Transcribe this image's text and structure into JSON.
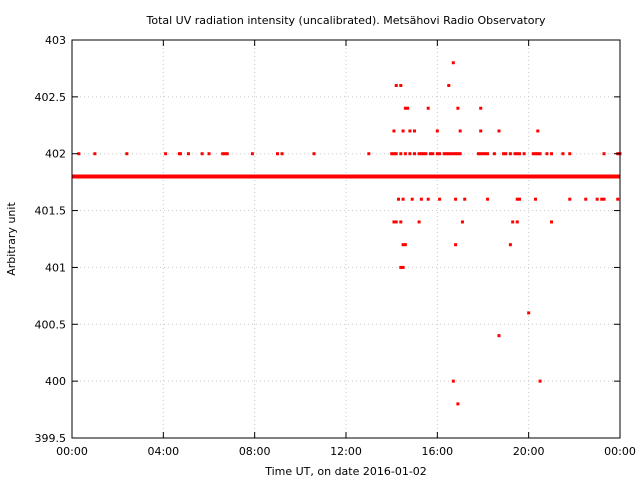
{
  "chart_data": {
    "type": "scatter",
    "title": "Total UV radiation intensity (uncalibrated). Metsähovi Radio Observatory",
    "xlabel": "Time UT, on date 2016-01-02",
    "ylabel": "Arbitrary unit",
    "xlim": [
      0,
      24
    ],
    "ylim": [
      399.5,
      403
    ],
    "x_ticks": [
      "00:00",
      "04:00",
      "08:00",
      "12:00",
      "16:00",
      "20:00",
      "00:00"
    ],
    "y_ticks": [
      "399.5",
      "400",
      "400.5",
      "401",
      "401.5",
      "402",
      "402.5",
      "403"
    ],
    "grid": true,
    "point_color": "#ff0000",
    "baseline": {
      "y": 401.8,
      "x_range": [
        0,
        24
      ],
      "note_values": "dense continuous band of points"
    },
    "points": [
      [
        0.3,
        402
      ],
      [
        1.0,
        402
      ],
      [
        2.4,
        402
      ],
      [
        4.1,
        402
      ],
      [
        4.7,
        402
      ],
      [
        4.75,
        402
      ],
      [
        5.1,
        402
      ],
      [
        5.7,
        402
      ],
      [
        6.0,
        402
      ],
      [
        6.6,
        402
      ],
      [
        6.7,
        402
      ],
      [
        6.8,
        402
      ],
      [
        7.9,
        402
      ],
      [
        9.0,
        402
      ],
      [
        9.2,
        402
      ],
      [
        10.6,
        402
      ],
      [
        13.0,
        402
      ],
      [
        14.0,
        402
      ],
      [
        14.1,
        402
      ],
      [
        14.2,
        402
      ],
      [
        14.4,
        402
      ],
      [
        14.6,
        402
      ],
      [
        14.8,
        402
      ],
      [
        15.0,
        402
      ],
      [
        15.2,
        402
      ],
      [
        15.3,
        402
      ],
      [
        15.4,
        402
      ],
      [
        15.5,
        402
      ],
      [
        15.7,
        402
      ],
      [
        15.8,
        402
      ],
      [
        16.0,
        402
      ],
      [
        16.1,
        402
      ],
      [
        16.3,
        402
      ],
      [
        16.4,
        402
      ],
      [
        16.5,
        402
      ],
      [
        16.6,
        402
      ],
      [
        16.7,
        402
      ],
      [
        16.8,
        402
      ],
      [
        16.9,
        402
      ],
      [
        17.0,
        402
      ],
      [
        17.8,
        402
      ],
      [
        17.9,
        402
      ],
      [
        18.0,
        402
      ],
      [
        18.1,
        402
      ],
      [
        18.2,
        402
      ],
      [
        18.5,
        402
      ],
      [
        18.9,
        402
      ],
      [
        19.0,
        402
      ],
      [
        19.2,
        402
      ],
      [
        19.4,
        402
      ],
      [
        19.5,
        402
      ],
      [
        19.6,
        402
      ],
      [
        19.8,
        402
      ],
      [
        20.2,
        402
      ],
      [
        20.3,
        402
      ],
      [
        20.4,
        402
      ],
      [
        20.5,
        402
      ],
      [
        20.8,
        402
      ],
      [
        21.0,
        402
      ],
      [
        21.5,
        402
      ],
      [
        21.8,
        402
      ],
      [
        23.3,
        402
      ],
      [
        23.9,
        402
      ],
      [
        24.0,
        402
      ],
      [
        14.2,
        402.6
      ],
      [
        14.4,
        402.6
      ],
      [
        16.5,
        402.6
      ],
      [
        16.7,
        402.8
      ],
      [
        14.6,
        402.4
      ],
      [
        14.7,
        402.4
      ],
      [
        15.6,
        402.4
      ],
      [
        16.9,
        402.4
      ],
      [
        17.9,
        402.4
      ],
      [
        14.1,
        402.2
      ],
      [
        14.5,
        402.2
      ],
      [
        14.8,
        402.2
      ],
      [
        15.0,
        402.2
      ],
      [
        16.0,
        402.2
      ],
      [
        17.0,
        402.2
      ],
      [
        17.9,
        402.2
      ],
      [
        18.7,
        402.2
      ],
      [
        20.4,
        402.2
      ],
      [
        14.3,
        401.6
      ],
      [
        14.5,
        401.6
      ],
      [
        14.9,
        401.6
      ],
      [
        15.3,
        401.6
      ],
      [
        15.6,
        401.6
      ],
      [
        16.1,
        401.6
      ],
      [
        16.8,
        401.6
      ],
      [
        17.2,
        401.6
      ],
      [
        18.2,
        401.6
      ],
      [
        19.5,
        401.6
      ],
      [
        19.6,
        401.6
      ],
      [
        20.3,
        401.6
      ],
      [
        21.8,
        401.6
      ],
      [
        22.5,
        401.6
      ],
      [
        23.0,
        401.6
      ],
      [
        23.2,
        401.6
      ],
      [
        23.3,
        401.6
      ],
      [
        23.9,
        401.6
      ],
      [
        14.1,
        401.4
      ],
      [
        14.2,
        401.4
      ],
      [
        14.4,
        401.4
      ],
      [
        15.2,
        401.4
      ],
      [
        17.1,
        401.4
      ],
      [
        19.3,
        401.4
      ],
      [
        19.5,
        401.4
      ],
      [
        21.0,
        401.4
      ],
      [
        14.5,
        401.2
      ],
      [
        14.6,
        401.2
      ],
      [
        16.8,
        401.2
      ],
      [
        19.2,
        401.2
      ],
      [
        14.4,
        401.0
      ],
      [
        14.5,
        401.0
      ],
      [
        20.0,
        400.6
      ],
      [
        18.7,
        400.4
      ],
      [
        16.7,
        400.0
      ],
      [
        20.5,
        400.0
      ],
      [
        16.9,
        399.8
      ]
    ]
  }
}
